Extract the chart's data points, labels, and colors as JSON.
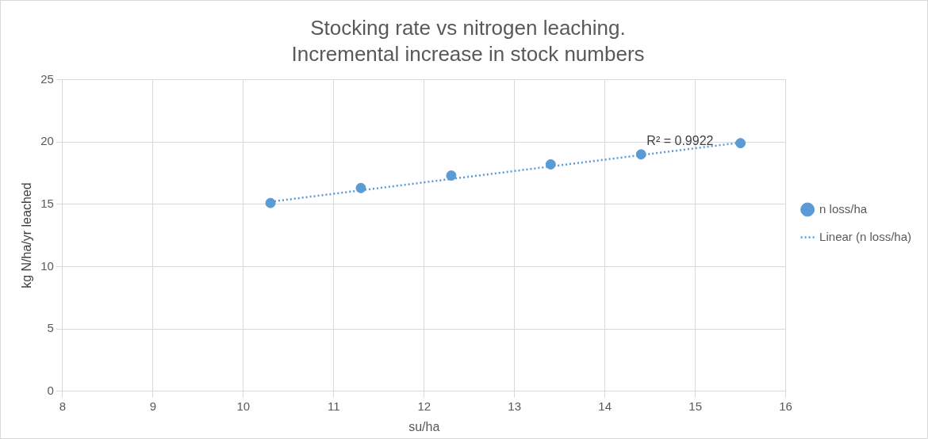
{
  "chart_data": {
    "type": "scatter",
    "title": "Stocking rate vs nitrogen leaching.",
    "subtitle": "Incremental increase in stock numbers",
    "xlabel": "su/ha",
    "ylabel": "kg N/ha/yr leached",
    "x": [
      10.3,
      11.3,
      12.3,
      13.4,
      14.4,
      15.5
    ],
    "series": [
      {
        "name": "n loss/ha",
        "color": "#5b9bd5",
        "values": [
          15.1,
          16.3,
          17.3,
          18.2,
          19.0,
          19.9
        ],
        "marker": "circle"
      },
      {
        "name": "Linear (n loss/ha)",
        "type": "line",
        "color": "#5b9bd5",
        "x": [
          10.3,
          15.5
        ],
        "values": [
          15.2,
          19.95
        ],
        "line_style": "dotted",
        "marker": "none"
      }
    ],
    "annotations": [
      "R² = 0.9922"
    ],
    "xlim": [
      8,
      16
    ],
    "xticks": [
      8,
      9,
      10,
      11,
      12,
      13,
      14,
      15,
      16
    ],
    "ylim": [
      0,
      25
    ],
    "yticks": [
      0,
      5,
      10,
      15,
      20,
      25
    ],
    "grid": true,
    "legend": "right"
  }
}
